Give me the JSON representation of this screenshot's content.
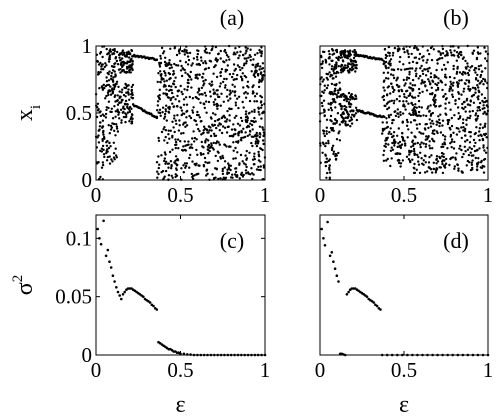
{
  "chart_data": [
    {
      "panel": "a",
      "panel_label": "(a)",
      "type": "scatter",
      "ylabel": "x",
      "ylabel_sub": "i",
      "xlabel": "",
      "xlim": [
        0,
        1
      ],
      "ylim": [
        0,
        1
      ],
      "xticks": [
        "0",
        "0.5",
        "1"
      ],
      "yticks": [
        "0",
        "0.5",
        "1"
      ],
      "grid": false,
      "regions": [
        {
          "eps": [
            0.0,
            0.06
          ],
          "kind": "chaotic_band",
          "y": [
            0.0,
            1.0
          ]
        },
        {
          "eps": [
            0.06,
            0.13
          ],
          "kind": "chaotic_bands",
          "bands": [
            [
              0.62,
              0.98
            ],
            [
              0.12,
              0.72
            ]
          ]
        },
        {
          "eps": [
            0.13,
            0.22
          ],
          "kind": "chaotic_bands",
          "bands": [
            [
              0.8,
              0.97
            ],
            [
              0.42,
              0.72
            ]
          ]
        },
        {
          "eps": [
            0.22,
            0.36
          ],
          "kind": "period_two",
          "branches": [
            [
              0.93,
              0.9
            ],
            [
              0.56,
              0.47
            ]
          ]
        },
        {
          "eps": [
            0.36,
            1.0
          ],
          "kind": "chaotic_band",
          "y": [
            0.0,
            1.0
          ]
        }
      ]
    },
    {
      "panel": "b",
      "panel_label": "(b)",
      "type": "scatter",
      "ylabel": "",
      "xlabel": "",
      "xlim": [
        0,
        1
      ],
      "ylim": [
        0,
        1
      ],
      "xticks": [
        "0",
        "0.5",
        "1"
      ],
      "yticks": [],
      "grid": false,
      "regions": [
        {
          "eps": [
            0.0,
            0.06
          ],
          "kind": "chaotic_band",
          "y": [
            0.0,
            1.0
          ]
        },
        {
          "eps": [
            0.06,
            0.12
          ],
          "kind": "chaotic_bands",
          "bands": [
            [
              0.62,
              0.98
            ],
            [
              0.15,
              0.72
            ]
          ]
        },
        {
          "eps": [
            0.12,
            0.22
          ],
          "kind": "chaotic_bands",
          "bands": [
            [
              0.8,
              0.97
            ],
            [
              0.4,
              0.65
            ]
          ]
        },
        {
          "eps": [
            0.22,
            0.37
          ],
          "kind": "period_two",
          "branches": [
            [
              0.93,
              0.9
            ],
            [
              0.52,
              0.47
            ]
          ]
        },
        {
          "eps": [
            0.37,
            0.55
          ],
          "kind": "chaotic_band",
          "y": [
            0.1,
            1.0
          ]
        },
        {
          "eps": [
            0.55,
            1.0
          ],
          "kind": "chaotic_band",
          "y": [
            0.05,
            1.0
          ]
        }
      ]
    },
    {
      "panel": "c",
      "panel_label": "(c)",
      "type": "scatter",
      "ylabel": "σ",
      "ylabel_sup": "2",
      "xlabel": "ε",
      "xlim": [
        0,
        1
      ],
      "ylim": [
        0,
        0.12
      ],
      "xticks": [
        "0",
        "0.5",
        "1"
      ],
      "yticks": [
        "0",
        "0.05",
        "0.1"
      ],
      "ytick_values": [
        0,
        0.05,
        0.1
      ],
      "grid": false,
      "points": [
        [
          0.01,
          0.108
        ],
        [
          0.02,
          0.1
        ],
        [
          0.03,
          0.095
        ],
        [
          0.045,
          0.115
        ],
        [
          0.06,
          0.085
        ],
        [
          0.07,
          0.09
        ],
        [
          0.08,
          0.08
        ],
        [
          0.09,
          0.075
        ],
        [
          0.1,
          0.068
        ],
        [
          0.11,
          0.063
        ],
        [
          0.12,
          0.058
        ],
        [
          0.13,
          0.054
        ],
        [
          0.14,
          0.051
        ],
        [
          0.15,
          0.048
        ],
        [
          0.16,
          0.052
        ],
        [
          0.17,
          0.054
        ],
        [
          0.18,
          0.056
        ],
        [
          0.19,
          0.057
        ],
        [
          0.2,
          0.057
        ],
        [
          0.21,
          0.057
        ],
        [
          0.22,
          0.056
        ],
        [
          0.23,
          0.055
        ],
        [
          0.24,
          0.054
        ],
        [
          0.25,
          0.053
        ],
        [
          0.26,
          0.052
        ],
        [
          0.27,
          0.051
        ],
        [
          0.28,
          0.05
        ],
        [
          0.29,
          0.048
        ],
        [
          0.3,
          0.047
        ],
        [
          0.31,
          0.046
        ],
        [
          0.32,
          0.045
        ],
        [
          0.33,
          0.043
        ],
        [
          0.34,
          0.042
        ],
        [
          0.35,
          0.04
        ],
        [
          0.36,
          0.039
        ],
        [
          0.37,
          0.011
        ],
        [
          0.38,
          0.01
        ],
        [
          0.39,
          0.009
        ],
        [
          0.4,
          0.008
        ],
        [
          0.41,
          0.007
        ],
        [
          0.42,
          0.006
        ],
        [
          0.43,
          0.005
        ],
        [
          0.44,
          0.005
        ],
        [
          0.45,
          0.004
        ],
        [
          0.46,
          0.003
        ],
        [
          0.47,
          0.003
        ],
        [
          0.48,
          0.002
        ],
        [
          0.49,
          0.002
        ],
        [
          0.5,
          0.001
        ],
        [
          0.52,
          0.001
        ],
        [
          0.54,
          0.0005
        ],
        [
          0.56,
          0.0003
        ],
        [
          0.58,
          0.0
        ],
        [
          0.6,
          0.0
        ],
        [
          0.62,
          0.0
        ],
        [
          0.64,
          0.0
        ],
        [
          0.66,
          0.0
        ],
        [
          0.68,
          0.0
        ],
        [
          0.7,
          0.0
        ],
        [
          0.72,
          0.0
        ],
        [
          0.74,
          0.0
        ],
        [
          0.76,
          0.0
        ],
        [
          0.78,
          0.0
        ],
        [
          0.8,
          0.0
        ],
        [
          0.82,
          0.0
        ],
        [
          0.84,
          0.0
        ],
        [
          0.86,
          0.0
        ],
        [
          0.88,
          0.0
        ],
        [
          0.9,
          0.0
        ],
        [
          0.92,
          0.0
        ],
        [
          0.94,
          0.0
        ],
        [
          0.96,
          0.0
        ],
        [
          0.98,
          0.0
        ],
        [
          1.0,
          0.0
        ]
      ]
    },
    {
      "panel": "d",
      "panel_label": "(d)",
      "type": "scatter",
      "ylabel": "",
      "xlabel": "ε",
      "xlim": [
        0,
        1
      ],
      "ylim": [
        0,
        0.12
      ],
      "xticks": [
        "0",
        "0.5",
        "1"
      ],
      "yticks": [],
      "grid": false,
      "points": [
        [
          0.01,
          0.108
        ],
        [
          0.02,
          0.1
        ],
        [
          0.03,
          0.094
        ],
        [
          0.045,
          0.114
        ],
        [
          0.06,
          0.085
        ],
        [
          0.07,
          0.088
        ],
        [
          0.08,
          0.08
        ],
        [
          0.09,
          0.074
        ],
        [
          0.1,
          0.068
        ],
        [
          0.11,
          0.063
        ],
        [
          0.12,
          0.001
        ],
        [
          0.13,
          0.001
        ],
        [
          0.14,
          0.0005
        ],
        [
          0.15,
          0.0
        ],
        [
          0.16,
          0.052
        ],
        [
          0.17,
          0.054
        ],
        [
          0.18,
          0.056
        ],
        [
          0.19,
          0.057
        ],
        [
          0.2,
          0.057
        ],
        [
          0.21,
          0.057
        ],
        [
          0.22,
          0.056
        ],
        [
          0.23,
          0.055
        ],
        [
          0.24,
          0.054
        ],
        [
          0.25,
          0.053
        ],
        [
          0.26,
          0.052
        ],
        [
          0.27,
          0.051
        ],
        [
          0.28,
          0.05
        ],
        [
          0.29,
          0.048
        ],
        [
          0.3,
          0.047
        ],
        [
          0.31,
          0.046
        ],
        [
          0.32,
          0.045
        ],
        [
          0.33,
          0.043
        ],
        [
          0.34,
          0.042
        ],
        [
          0.35,
          0.04
        ],
        [
          0.36,
          0.039
        ],
        [
          0.37,
          0.0
        ],
        [
          0.4,
          0.0
        ],
        [
          0.43,
          0.0
        ],
        [
          0.46,
          0.0
        ],
        [
          0.49,
          0.0
        ],
        [
          0.52,
          0.0
        ],
        [
          0.55,
          0.0
        ],
        [
          0.58,
          0.0
        ],
        [
          0.61,
          0.0
        ],
        [
          0.64,
          0.0
        ],
        [
          0.67,
          0.0
        ],
        [
          0.7,
          0.0
        ],
        [
          0.73,
          0.0
        ],
        [
          0.76,
          0.0
        ],
        [
          0.79,
          0.0
        ],
        [
          0.82,
          0.0
        ],
        [
          0.85,
          0.0
        ],
        [
          0.88,
          0.0
        ],
        [
          0.91,
          0.0
        ],
        [
          0.94,
          0.0
        ],
        [
          0.97,
          0.0
        ],
        [
          1.0,
          0.0
        ]
      ]
    }
  ]
}
